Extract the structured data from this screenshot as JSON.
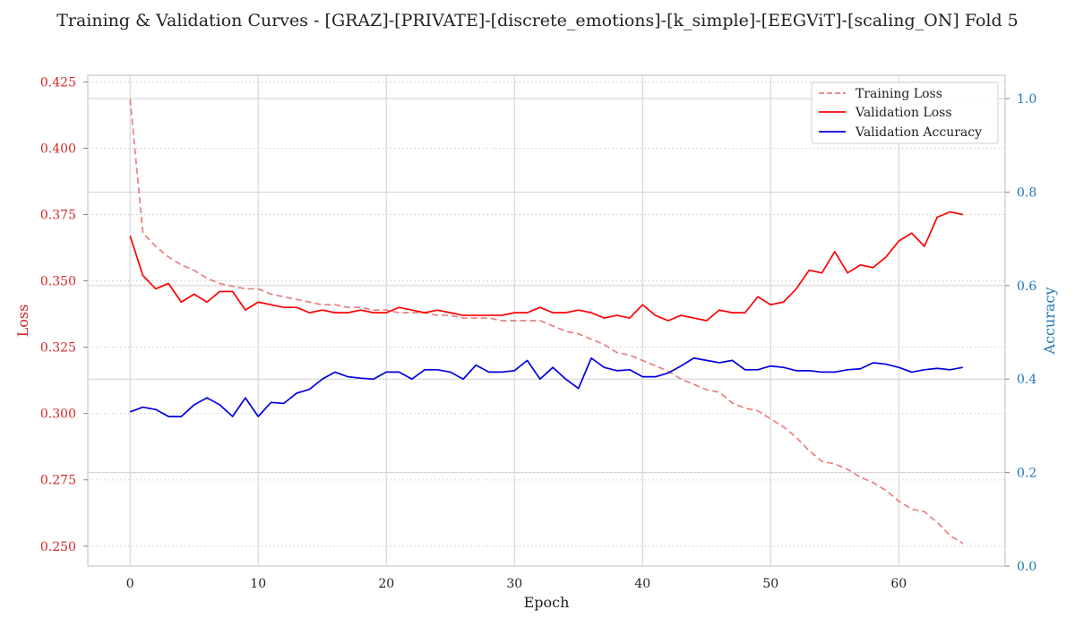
{
  "chart_data": {
    "type": "line",
    "title": "Training & Validation Curves - [GRAZ]-[PRIVATE]-[discrete_emotions]-[k_simple]-[EEGViT]-[scaling_ON] Fold 5",
    "xlabel": "Epoch",
    "ylabel_left": "Loss",
    "ylabel_right": "Accuracy",
    "xlim": [
      -3.3,
      68.3
    ],
    "ylim_left": [
      0.2425,
      0.4275
    ],
    "ylim_right": [
      0.0,
      1.05
    ],
    "xticks": [
      0,
      10,
      20,
      30,
      40,
      50,
      60
    ],
    "yticks_left": [
      0.25,
      0.275,
      0.3,
      0.325,
      0.35,
      0.375,
      0.4,
      0.425
    ],
    "yticks_right": [
      0.0,
      0.2,
      0.4,
      0.6,
      0.8,
      1.0
    ],
    "ytick_labels_left": [
      "0.250",
      "0.275",
      "0.300",
      "0.325",
      "0.350",
      "0.375",
      "0.400",
      "0.425"
    ],
    "ytick_labels_right": [
      "0.0",
      "0.2",
      "0.4",
      "0.6",
      "0.8",
      "1.0"
    ],
    "grid": true,
    "legend_position": "top-right",
    "colors": {
      "training_loss": "#e88080",
      "validation_loss": "#ff0000",
      "validation_accuracy": "#0000e0",
      "left_axis": "#d62728",
      "right_axis": "#1f77b4"
    },
    "series": [
      {
        "name": "Training Loss",
        "axis": "left",
        "style": "dashed",
        "values": [
          0.4185,
          0.368,
          0.363,
          0.359,
          0.356,
          0.354,
          0.351,
          0.349,
          0.348,
          0.347,
          0.347,
          0.345,
          0.344,
          0.343,
          0.342,
          0.341,
          0.341,
          0.34,
          0.34,
          0.339,
          0.339,
          0.338,
          0.338,
          0.338,
          0.337,
          0.337,
          0.336,
          0.336,
          0.336,
          0.335,
          0.335,
          0.335,
          0.335,
          0.333,
          0.331,
          0.33,
          0.328,
          0.326,
          0.323,
          0.322,
          0.32,
          0.318,
          0.316,
          0.313,
          0.311,
          0.309,
          0.308,
          0.304,
          0.302,
          0.301,
          0.298,
          0.295,
          0.291,
          0.286,
          0.282,
          0.281,
          0.279,
          0.276,
          0.274,
          0.271,
          0.267,
          0.264,
          0.263,
          0.259,
          0.254,
          0.251
        ]
      },
      {
        "name": "Validation Loss",
        "axis": "left",
        "style": "solid",
        "values": [
          0.367,
          0.352,
          0.347,
          0.349,
          0.342,
          0.345,
          0.342,
          0.346,
          0.346,
          0.339,
          0.342,
          0.341,
          0.34,
          0.34,
          0.338,
          0.339,
          0.338,
          0.338,
          0.339,
          0.338,
          0.338,
          0.34,
          0.339,
          0.338,
          0.339,
          0.338,
          0.337,
          0.337,
          0.337,
          0.337,
          0.338,
          0.338,
          0.34,
          0.338,
          0.338,
          0.339,
          0.338,
          0.336,
          0.337,
          0.336,
          0.341,
          0.337,
          0.335,
          0.337,
          0.336,
          0.335,
          0.339,
          0.338,
          0.338,
          0.344,
          0.341,
          0.342,
          0.347,
          0.354,
          0.353,
          0.361,
          0.353,
          0.356,
          0.355,
          0.359,
          0.365,
          0.368,
          0.363,
          0.374,
          0.376,
          0.375
        ]
      },
      {
        "name": "Validation Accuracy",
        "axis": "right",
        "style": "solid",
        "values": [
          0.33,
          0.34,
          0.335,
          0.32,
          0.32,
          0.345,
          0.36,
          0.345,
          0.32,
          0.36,
          0.32,
          0.35,
          0.348,
          0.37,
          0.378,
          0.4,
          0.415,
          0.405,
          0.402,
          0.4,
          0.415,
          0.415,
          0.4,
          0.42,
          0.42,
          0.415,
          0.4,
          0.43,
          0.415,
          0.415,
          0.418,
          0.44,
          0.4,
          0.425,
          0.4,
          0.38,
          0.445,
          0.425,
          0.418,
          0.42,
          0.405,
          0.405,
          0.413,
          0.428,
          0.445,
          0.44,
          0.435,
          0.44,
          0.42,
          0.42,
          0.428,
          0.425,
          0.418,
          0.418,
          0.415,
          0.415,
          0.42,
          0.422,
          0.435,
          0.432,
          0.425,
          0.415,
          0.42,
          0.423,
          0.42,
          0.425
        ]
      }
    ]
  }
}
